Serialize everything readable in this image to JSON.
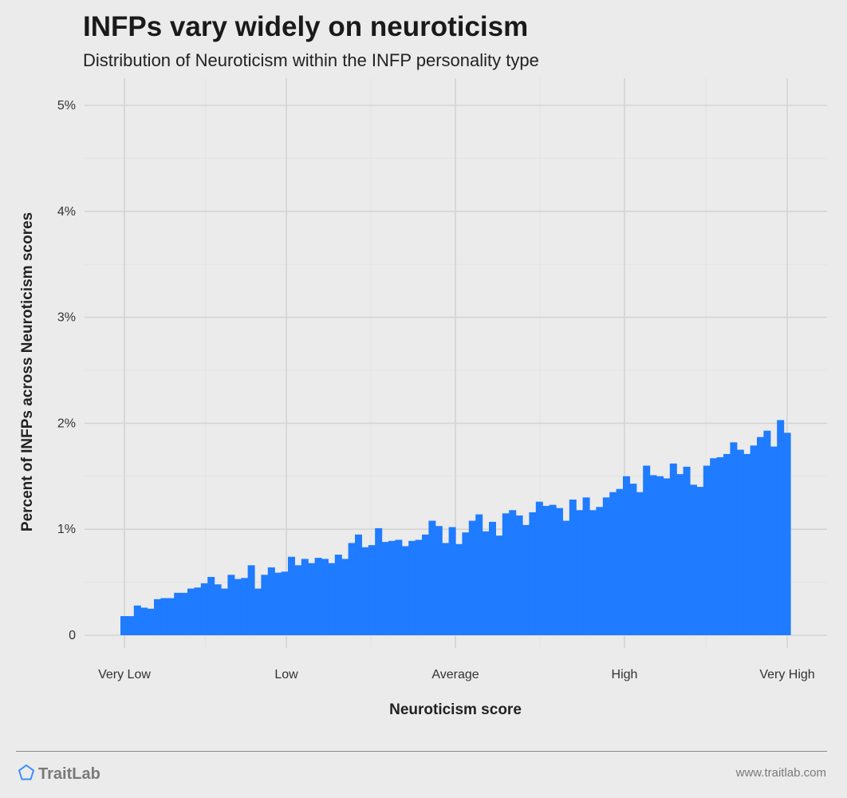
{
  "header": {
    "title": "INFPs vary widely on neuroticism",
    "subtitle": "Distribution of Neuroticism within the INFP personality type"
  },
  "footer": {
    "brand": "TraitLab",
    "url": "www.traitlab.com"
  },
  "colors": {
    "bar": "#1f7bff",
    "background": "#ebebeb",
    "grid_major": "#d4d4d4",
    "grid_minor": "#e3e3e3",
    "brand_icon": "#3d8cff"
  },
  "chart_data": {
    "type": "bar",
    "title": "INFPs vary widely on neuroticism",
    "subtitle": "Distribution of Neuroticism within the INFP personality type",
    "xlabel": "Neuroticism score",
    "ylabel": "Percent of INFPs across Neuroticism scores",
    "x_tick_labels": [
      "Very Low",
      "Low",
      "Average",
      "High",
      "Very High"
    ],
    "y_ticks": [
      0,
      1,
      2,
      3,
      4,
      5
    ],
    "y_tick_labels": [
      "0",
      "1%",
      "2%",
      "3%",
      "4%",
      "5%"
    ],
    "ylim": [
      0,
      5
    ],
    "grid": true,
    "legend": "none",
    "values": [
      0.18,
      0.18,
      0.28,
      0.26,
      0.25,
      0.34,
      0.35,
      0.35,
      0.4,
      0.4,
      0.44,
      0.45,
      0.49,
      0.55,
      0.48,
      0.44,
      0.57,
      0.53,
      0.54,
      0.66,
      0.44,
      0.57,
      0.64,
      0.59,
      0.6,
      0.74,
      0.66,
      0.72,
      0.68,
      0.73,
      0.72,
      0.68,
      0.76,
      0.72,
      0.87,
      0.95,
      0.83,
      0.85,
      1.01,
      0.88,
      0.89,
      0.9,
      0.84,
      0.89,
      0.9,
      0.95,
      1.08,
      1.03,
      0.87,
      1.02,
      0.86,
      0.97,
      1.08,
      1.14,
      0.98,
      1.07,
      0.94,
      1.15,
      1.18,
      1.13,
      1.04,
      1.16,
      1.26,
      1.22,
      1.23,
      1.2,
      1.08,
      1.28,
      1.18,
      1.3,
      1.18,
      1.21,
      1.3,
      1.35,
      1.38,
      1.5,
      1.43,
      1.35,
      1.6,
      1.51,
      1.5,
      1.48,
      1.62,
      1.52,
      1.59,
      1.42,
      1.4,
      1.6,
      1.67,
      1.68,
      1.71,
      1.82,
      1.75,
      1.71,
      1.79,
      1.87,
      1.93,
      1.78,
      2.03,
      1.91
    ]
  }
}
